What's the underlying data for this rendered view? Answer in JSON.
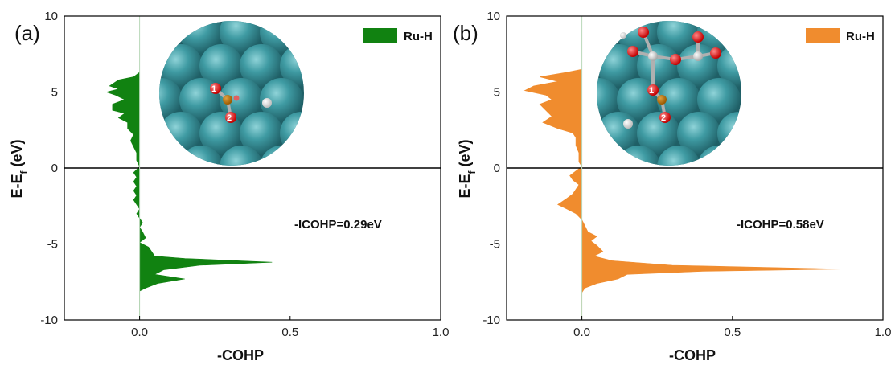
{
  "chart_data": [
    {
      "type": "area",
      "panel_label": "(a)",
      "xlabel": "-COHP",
      "ylabel": "E-E",
      "ylabel_sub": "f",
      "ylabel_unit": " (eV)",
      "xlim": [
        -0.25,
        1.0
      ],
      "ylim": [
        -10,
        10
      ],
      "xticks": [
        0.0,
        0.5,
        1.0
      ],
      "xtick_labels": [
        "0.0",
        "0.5",
        "1.0"
      ],
      "yticks": [
        -10,
        -5,
        0,
        5,
        10
      ],
      "ytick_labels": [
        "-10",
        "-5",
        "0",
        "5",
        "10"
      ],
      "fill_color": "#118211",
      "annotation": "-ICOHP=0.29eV",
      "series": [
        {
          "name": "Ru-H",
          "points": [
            [
              0.0,
              6.3
            ],
            [
              -0.02,
              6.0
            ],
            [
              -0.07,
              5.8
            ],
            [
              -0.1,
              5.4
            ],
            [
              -0.07,
              5.2
            ],
            [
              -0.11,
              5.0
            ],
            [
              -0.08,
              4.8
            ],
            [
              -0.05,
              4.5
            ],
            [
              -0.09,
              4.2
            ],
            [
              -0.09,
              3.8
            ],
            [
              -0.05,
              3.6
            ],
            [
              -0.07,
              3.3
            ],
            [
              -0.04,
              3.0
            ],
            [
              -0.04,
              2.6
            ],
            [
              -0.02,
              2.2
            ],
            [
              -0.03,
              1.8
            ],
            [
              -0.02,
              1.4
            ],
            [
              -0.01,
              1.0
            ],
            [
              -0.01,
              0.5
            ],
            [
              0.0,
              0.1
            ],
            [
              -0.01,
              -0.1
            ],
            [
              -0.02,
              -0.3
            ],
            [
              -0.01,
              -0.6
            ],
            [
              -0.02,
              -0.9
            ],
            [
              -0.01,
              -1.2
            ],
            [
              -0.02,
              -1.5
            ],
            [
              -0.01,
              -1.8
            ],
            [
              -0.02,
              -2.1
            ],
            [
              -0.01,
              -2.4
            ],
            [
              0.0,
              -2.7
            ],
            [
              -0.01,
              -3.0
            ],
            [
              0.0,
              -3.3
            ],
            [
              0.01,
              -3.6
            ],
            [
              0.0,
              -3.9
            ],
            [
              0.01,
              -4.2
            ],
            [
              0.02,
              -4.6
            ],
            [
              0.0,
              -4.9
            ],
            [
              0.03,
              -5.2
            ],
            [
              0.04,
              -5.5
            ],
            [
              0.05,
              -5.8
            ],
            [
              0.15,
              -5.95
            ],
            [
              0.44,
              -6.2
            ],
            [
              0.2,
              -6.4
            ],
            [
              0.08,
              -6.7
            ],
            [
              0.05,
              -7.0
            ],
            [
              0.15,
              -7.3
            ],
            [
              0.06,
              -7.6
            ],
            [
              0.02,
              -7.9
            ],
            [
              0.0,
              -8.1
            ],
            [
              0.0,
              -10.0
            ]
          ]
        }
      ]
    },
    {
      "type": "area",
      "panel_label": "(b)",
      "xlabel": "-COHP",
      "ylabel": "E-E",
      "ylabel_sub": "f",
      "ylabel_unit": " (eV)",
      "xlim": [
        -0.25,
        1.0
      ],
      "ylim": [
        -10,
        10
      ],
      "xticks": [
        0.0,
        0.5,
        1.0
      ],
      "xtick_labels": [
        "0.0",
        "0.5",
        "1.0"
      ],
      "yticks": [
        -10,
        -5,
        0,
        5,
        10
      ],
      "ytick_labels": [
        "-10",
        "-5",
        "0",
        "5",
        "10"
      ],
      "fill_color": "#F08C2E",
      "annotation": "-ICOHP=0.58eV",
      "series": [
        {
          "name": "Ru-H",
          "points": [
            [
              0.0,
              6.5
            ],
            [
              -0.05,
              6.3
            ],
            [
              -0.14,
              6.0
            ],
            [
              -0.08,
              5.7
            ],
            [
              -0.16,
              5.4
            ],
            [
              -0.19,
              5.1
            ],
            [
              -0.12,
              4.8
            ],
            [
              -0.1,
              4.5
            ],
            [
              -0.14,
              4.2
            ],
            [
              -0.12,
              3.8
            ],
            [
              -0.1,
              3.4
            ],
            [
              -0.13,
              3.0
            ],
            [
              -0.08,
              2.6
            ],
            [
              -0.03,
              2.3
            ],
            [
              -0.02,
              2.0
            ],
            [
              -0.02,
              1.5
            ],
            [
              -0.01,
              1.0
            ],
            [
              -0.01,
              0.4
            ],
            [
              0.0,
              0.1
            ],
            [
              -0.02,
              -0.2
            ],
            [
              -0.04,
              -0.5
            ],
            [
              -0.03,
              -0.8
            ],
            [
              -0.01,
              -1.1
            ],
            [
              -0.02,
              -1.4
            ],
            [
              -0.03,
              -1.7
            ],
            [
              -0.05,
              -2.0
            ],
            [
              -0.08,
              -2.4
            ],
            [
              -0.05,
              -2.7
            ],
            [
              -0.02,
              -3.0
            ],
            [
              0.0,
              -3.4
            ],
            [
              0.01,
              -3.8
            ],
            [
              0.02,
              -4.2
            ],
            [
              0.05,
              -4.5
            ],
            [
              0.03,
              -4.8
            ],
            [
              0.05,
              -5.1
            ],
            [
              0.07,
              -5.5
            ],
            [
              0.04,
              -5.8
            ],
            [
              0.1,
              -6.1
            ],
            [
              0.3,
              -6.4
            ],
            [
              0.86,
              -6.65
            ],
            [
              0.4,
              -6.8
            ],
            [
              0.15,
              -7.0
            ],
            [
              0.12,
              -7.3
            ],
            [
              0.05,
              -7.6
            ],
            [
              0.01,
              -7.9
            ],
            [
              0.0,
              -8.2
            ],
            [
              0.0,
              -10.0
            ]
          ]
        }
      ]
    }
  ]
}
